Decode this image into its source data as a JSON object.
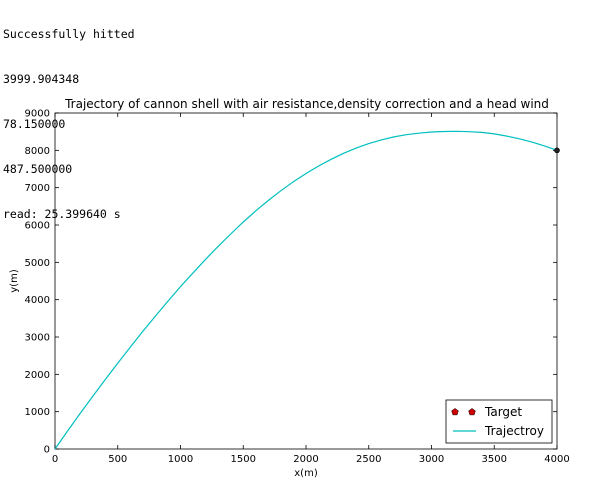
{
  "console": {
    "lines": [
      "Successfully hitted",
      "3999.904348",
      "78.150000",
      "487.500000",
      "read: 25.399640 s"
    ]
  },
  "chart_data": {
    "type": "line",
    "title": "Trajectory of cannon shell with air resistance,density correction and a head wind",
    "xlabel": "x(m)",
    "ylabel": "y(m)",
    "xlim": [
      0,
      4000
    ],
    "ylim": [
      0,
      9000
    ],
    "xticks": [
      0,
      500,
      1000,
      1500,
      2000,
      2500,
      3000,
      3500,
      4000
    ],
    "yticks": [
      0,
      1000,
      2000,
      3000,
      4000,
      5000,
      6000,
      7000,
      8000,
      9000
    ],
    "grid": false,
    "legend_position": "lower-right",
    "series": [
      {
        "name": "Trajectroy",
        "color": "#00bfbf",
        "x": [
          0,
          100,
          200,
          300,
          400,
          500,
          600,
          700,
          800,
          900,
          1000,
          1100,
          1200,
          1300,
          1400,
          1500,
          1600,
          1700,
          1800,
          1900,
          2000,
          2100,
          2200,
          2300,
          2400,
          2500,
          2600,
          2700,
          2800,
          2900,
          3000,
          3100,
          3200,
          3300,
          3400,
          3500,
          3600,
          3700,
          3800,
          3900,
          4000
        ],
        "y": [
          0,
          480,
          950,
          1410,
          1860,
          2300,
          2730,
          3150,
          3560,
          3960,
          4350,
          4720,
          5080,
          5430,
          5760,
          6080,
          6380,
          6660,
          6920,
          7160,
          7380,
          7580,
          7760,
          7920,
          8060,
          8180,
          8280,
          8360,
          8420,
          8460,
          8490,
          8505,
          8510,
          8500,
          8480,
          8440,
          8380,
          8310,
          8220,
          8120,
          8000
        ]
      }
    ],
    "markers": [
      {
        "name": "Target",
        "color": "#cc0000",
        "x": 4000,
        "y": 8000
      }
    ]
  }
}
